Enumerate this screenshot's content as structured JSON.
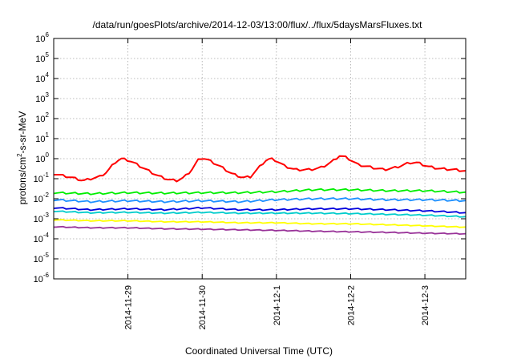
{
  "chart_data": {
    "type": "line",
    "title": "/data/run/goesPlots/archive/2014-12-03/13:00/flux/../flux/5daysMarsFluxes.txt",
    "xlabel": "Coordinated Universal Time (UTC)",
    "ylabel_parts": [
      "protons/cm",
      "2",
      "-s-sr-MeV"
    ],
    "y_scale": "log",
    "ylim_exp": [
      -6,
      6
    ],
    "y_tick_exponents": [
      -6,
      -5,
      -4,
      -3,
      -2,
      -1,
      0,
      1,
      2,
      3,
      4,
      5,
      6
    ],
    "y_tick_base": "10",
    "x_unit": "days since 2014-11-28 00:00 UTC",
    "xlim": [
      0.0,
      5.55
    ],
    "x_ticks": [
      {
        "label": "2014-11-29",
        "x": 1.0
      },
      {
        "label": "2014-11-30",
        "x": 2.0
      },
      {
        "label": "2014-12-1",
        "x": 3.0
      },
      {
        "label": "2014-12-2",
        "x": 4.0
      },
      {
        "label": "2014-12-3",
        "x": 5.0
      }
    ],
    "grid": true,
    "series": [
      {
        "color": "#ff0000",
        "sawtooth_amp": 0.1,
        "points": [
          [
            0.0,
            -0.75
          ],
          [
            0.25,
            -0.95
          ],
          [
            0.4,
            -1.1
          ],
          [
            0.5,
            -1.0
          ],
          [
            0.62,
            -0.9
          ],
          [
            0.72,
            -0.65
          ],
          [
            0.82,
            -0.2
          ],
          [
            0.9,
            0.0
          ],
          [
            0.98,
            -0.05
          ],
          [
            1.05,
            -0.15
          ],
          [
            1.2,
            -0.45
          ],
          [
            1.4,
            -0.85
          ],
          [
            1.55,
            -1.05
          ],
          [
            1.65,
            -1.1
          ],
          [
            1.75,
            -0.95
          ],
          [
            1.85,
            -0.6
          ],
          [
            1.95,
            -0.05
          ],
          [
            2.0,
            0.05
          ],
          [
            2.1,
            -0.1
          ],
          [
            2.25,
            -0.4
          ],
          [
            2.4,
            -0.75
          ],
          [
            2.55,
            -0.95
          ],
          [
            2.65,
            -0.9
          ],
          [
            2.75,
            -0.5
          ],
          [
            2.85,
            -0.1
          ],
          [
            2.92,
            0.0
          ],
          [
            3.0,
            -0.1
          ],
          [
            3.1,
            -0.35
          ],
          [
            3.25,
            -0.55
          ],
          [
            3.45,
            -0.55
          ],
          [
            3.6,
            -0.45
          ],
          [
            3.75,
            -0.15
          ],
          [
            3.85,
            0.15
          ],
          [
            3.95,
            0.05
          ],
          [
            4.1,
            -0.3
          ],
          [
            4.3,
            -0.45
          ],
          [
            4.45,
            -0.55
          ],
          [
            4.6,
            -0.45
          ],
          [
            4.8,
            -0.2
          ],
          [
            4.9,
            -0.2
          ],
          [
            5.05,
            -0.4
          ],
          [
            5.2,
            -0.5
          ],
          [
            5.4,
            -0.55
          ],
          [
            5.55,
            -0.62
          ]
        ]
      },
      {
        "color": "#00ee00",
        "sawtooth_amp": 0.08,
        "points": [
          [
            0.0,
            -1.7
          ],
          [
            0.5,
            -1.75
          ],
          [
            1.0,
            -1.7
          ],
          [
            1.5,
            -1.72
          ],
          [
            2.0,
            -1.7
          ],
          [
            2.5,
            -1.7
          ],
          [
            3.0,
            -1.65
          ],
          [
            3.5,
            -1.55
          ],
          [
            4.0,
            -1.55
          ],
          [
            4.5,
            -1.6
          ],
          [
            5.0,
            -1.6
          ],
          [
            5.55,
            -1.68
          ]
        ]
      },
      {
        "color": "#1e90ff",
        "sawtooth_amp": 0.08,
        "points": [
          [
            0.0,
            -2.05
          ],
          [
            0.5,
            -2.15
          ],
          [
            1.0,
            -2.1
          ],
          [
            1.5,
            -2.15
          ],
          [
            2.0,
            -2.1
          ],
          [
            2.5,
            -2.15
          ],
          [
            3.0,
            -2.05
          ],
          [
            3.5,
            -2.0
          ],
          [
            4.0,
            -2.0
          ],
          [
            4.5,
            -2.05
          ],
          [
            5.0,
            -2.05
          ],
          [
            5.55,
            -2.1
          ]
        ]
      },
      {
        "color": "#0000dd",
        "sawtooth_amp": 0.06,
        "points": [
          [
            0.0,
            -2.45
          ],
          [
            0.5,
            -2.55
          ],
          [
            1.0,
            -2.5
          ],
          [
            1.5,
            -2.55
          ],
          [
            2.0,
            -2.45
          ],
          [
            2.5,
            -2.55
          ],
          [
            3.0,
            -2.55
          ],
          [
            3.5,
            -2.5
          ],
          [
            4.0,
            -2.5
          ],
          [
            4.5,
            -2.55
          ],
          [
            5.0,
            -2.6
          ],
          [
            5.55,
            -2.7
          ]
        ]
      },
      {
        "color": "#00cccc",
        "sawtooth_amp": 0.05,
        "points": [
          [
            0.0,
            -2.62
          ],
          [
            0.5,
            -2.7
          ],
          [
            1.0,
            -2.68
          ],
          [
            1.5,
            -2.72
          ],
          [
            2.0,
            -2.68
          ],
          [
            2.5,
            -2.72
          ],
          [
            3.0,
            -2.72
          ],
          [
            3.5,
            -2.72
          ],
          [
            4.0,
            -2.74
          ],
          [
            4.5,
            -2.78
          ],
          [
            5.0,
            -2.82
          ],
          [
            5.55,
            -2.9
          ]
        ]
      },
      {
        "color": "#ffff00",
        "sawtooth_amp": 0.04,
        "points": [
          [
            0.0,
            -3.05
          ],
          [
            0.5,
            -3.1
          ],
          [
            1.0,
            -3.1
          ],
          [
            1.5,
            -3.15
          ],
          [
            2.0,
            -3.15
          ],
          [
            2.5,
            -3.2
          ],
          [
            3.0,
            -3.2
          ],
          [
            3.5,
            -3.25
          ],
          [
            4.0,
            -3.25
          ],
          [
            4.5,
            -3.3
          ],
          [
            5.0,
            -3.35
          ],
          [
            5.55,
            -3.42
          ]
        ]
      },
      {
        "color": "#993399",
        "sawtooth_amp": 0.04,
        "points": [
          [
            0.0,
            -3.4
          ],
          [
            0.5,
            -3.45
          ],
          [
            1.0,
            -3.45
          ],
          [
            1.5,
            -3.5
          ],
          [
            2.0,
            -3.52
          ],
          [
            2.5,
            -3.55
          ],
          [
            3.0,
            -3.58
          ],
          [
            3.5,
            -3.62
          ],
          [
            4.0,
            -3.65
          ],
          [
            4.5,
            -3.68
          ],
          [
            5.0,
            -3.72
          ],
          [
            5.55,
            -3.75
          ]
        ]
      }
    ]
  }
}
